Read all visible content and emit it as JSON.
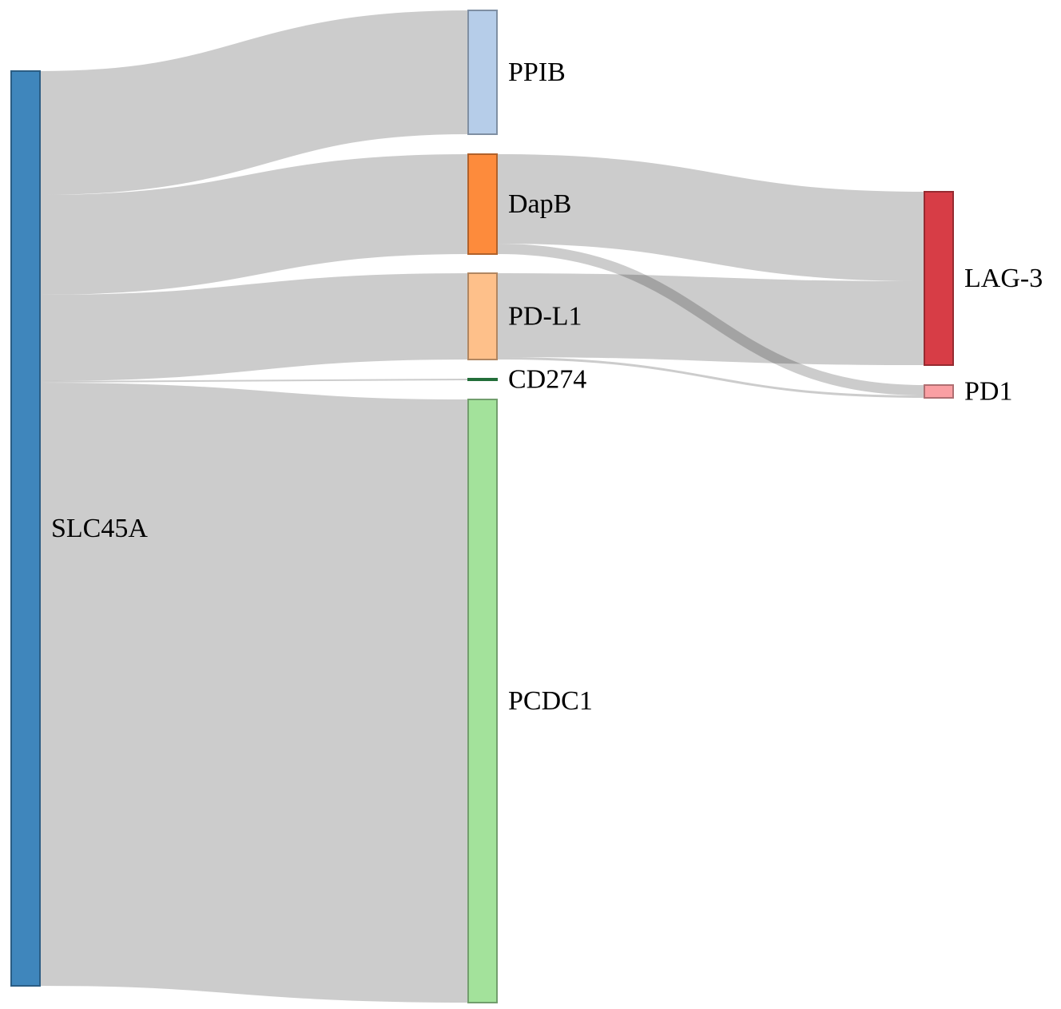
{
  "chart_data": {
    "type": "sankey",
    "nodes": [
      {
        "id": "SLC45A",
        "label": "SLC45A",
        "color": "#3f86bc",
        "stroke": "#2b5d84"
      },
      {
        "id": "PPIB",
        "label": "PPIB",
        "color": "#b6cde9",
        "stroke": "#7f8fa3"
      },
      {
        "id": "DapB",
        "label": "DapB",
        "color": "#fd8b3c",
        "stroke": "#b1612a"
      },
      {
        "id": "PD-L1",
        "label": "PD-L1",
        "color": "#fec08a",
        "stroke": "#b18661"
      },
      {
        "id": "CD274",
        "label": "CD274",
        "color": "#31a354",
        "stroke": "#236e3a"
      },
      {
        "id": "PCDC1",
        "label": "PCDC1",
        "color": "#a3e29b",
        "stroke": "#729e6d"
      },
      {
        "id": "LAG-3",
        "label": "LAG-3",
        "color": "#d73d46",
        "stroke": "#962b31"
      },
      {
        "id": "PD1",
        "label": "PD1",
        "color": "#fa9fa3",
        "stroke": "#af6f72"
      }
    ],
    "links": [
      {
        "source": "SLC45A",
        "target": "PPIB",
        "value": 155
      },
      {
        "source": "SLC45A",
        "target": "DapB",
        "value": 125
      },
      {
        "source": "SLC45A",
        "target": "PD-L1",
        "value": 108
      },
      {
        "source": "SLC45A",
        "target": "CD274",
        "value": 2
      },
      {
        "source": "SLC45A",
        "target": "PCDC1",
        "value": 755
      },
      {
        "source": "DapB",
        "target": "LAG-3",
        "value": 112
      },
      {
        "source": "DapB",
        "target": "PD1",
        "value": 13
      },
      {
        "source": "PD-L1",
        "target": "LAG-3",
        "value": 105
      },
      {
        "source": "PD-L1",
        "target": "PD1",
        "value": 3
      }
    ]
  }
}
